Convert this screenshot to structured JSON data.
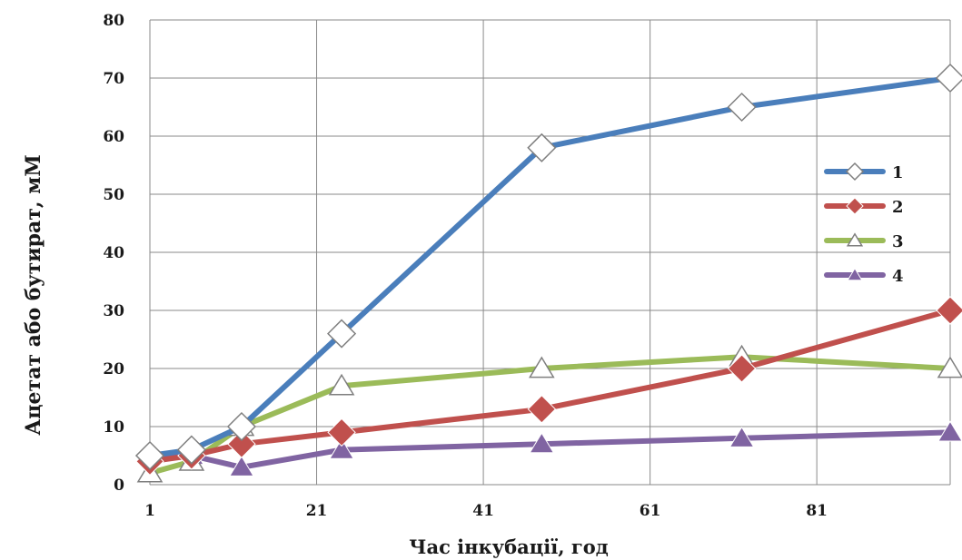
{
  "chart_data": {
    "type": "line",
    "xlabel": "Час інкубації,  год",
    "ylabel": "Ацетат або бутират, мМ",
    "xlim": [
      1,
      97
    ],
    "ylim": [
      0,
      80
    ],
    "x_ticks": [
      1,
      21,
      41,
      61,
      81
    ],
    "y_ticks": [
      0,
      10,
      20,
      30,
      40,
      50,
      60,
      70,
      80
    ],
    "grid": true,
    "legend_position": "right",
    "series": [
      {
        "name": "1",
        "color": "#4a7ebb",
        "marker": "diamond-open",
        "x": [
          1,
          6,
          12,
          24,
          48,
          72,
          97
        ],
        "y": [
          5,
          6,
          10,
          26,
          58,
          65,
          70
        ]
      },
      {
        "name": "2",
        "color": "#c0504d",
        "marker": "diamond-filled",
        "x": [
          1,
          6,
          12,
          24,
          48,
          72,
          97
        ],
        "y": [
          4,
          5,
          7,
          9,
          13,
          20,
          30
        ]
      },
      {
        "name": "3",
        "color": "#9bbb59",
        "marker": "triangle-open",
        "x": [
          1,
          6,
          12,
          24,
          48,
          72,
          97
        ],
        "y": [
          2,
          4,
          10,
          17,
          20,
          22,
          20
        ]
      },
      {
        "name": "4",
        "color": "#8064a2",
        "marker": "triangle-filled",
        "x": [
          1,
          6,
          12,
          24,
          48,
          72,
          97
        ],
        "y": [
          5,
          5,
          3,
          6,
          7,
          8,
          9
        ]
      }
    ]
  }
}
